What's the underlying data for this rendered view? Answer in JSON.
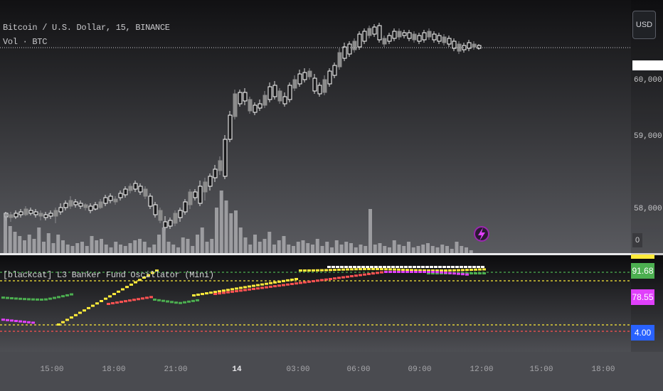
{
  "header": {
    "symbol_line": "Bitcoin / U.S. Dollar, 15, BINANCE",
    "volume_line": "Vol · BTC",
    "currency_button": "USD"
  },
  "price_axis": {
    "labels": [
      "60,000.00",
      "59,000.00",
      "58,000.00"
    ],
    "current_price": "",
    "volume_tag": "0"
  },
  "indicator": {
    "legend": "[blackcat] L3 Banker Fund Oscillator (Mini)",
    "tags": {
      "value_1": "91.68",
      "value_2": "78.55",
      "value_3": "4.00"
    }
  },
  "time_axis": {
    "labels": [
      "15:00",
      "18:00",
      "21:00",
      "14",
      "03:00",
      "06:00",
      "09:00",
      "12:00",
      "15:00",
      "18:00"
    ]
  },
  "colors": {
    "bull_candle": "#ffffff",
    "bear_candle": "#8c8c8c",
    "volume": "#a9a9ad",
    "osc_green": "#4caf50",
    "osc_yellow": "#ffeb3b",
    "osc_red": "#ff5252",
    "osc_magenta": "#e040fb",
    "tag_blue": "#2962ff"
  },
  "icons": {
    "alert_marker": "lightning-bolt-icon"
  }
}
